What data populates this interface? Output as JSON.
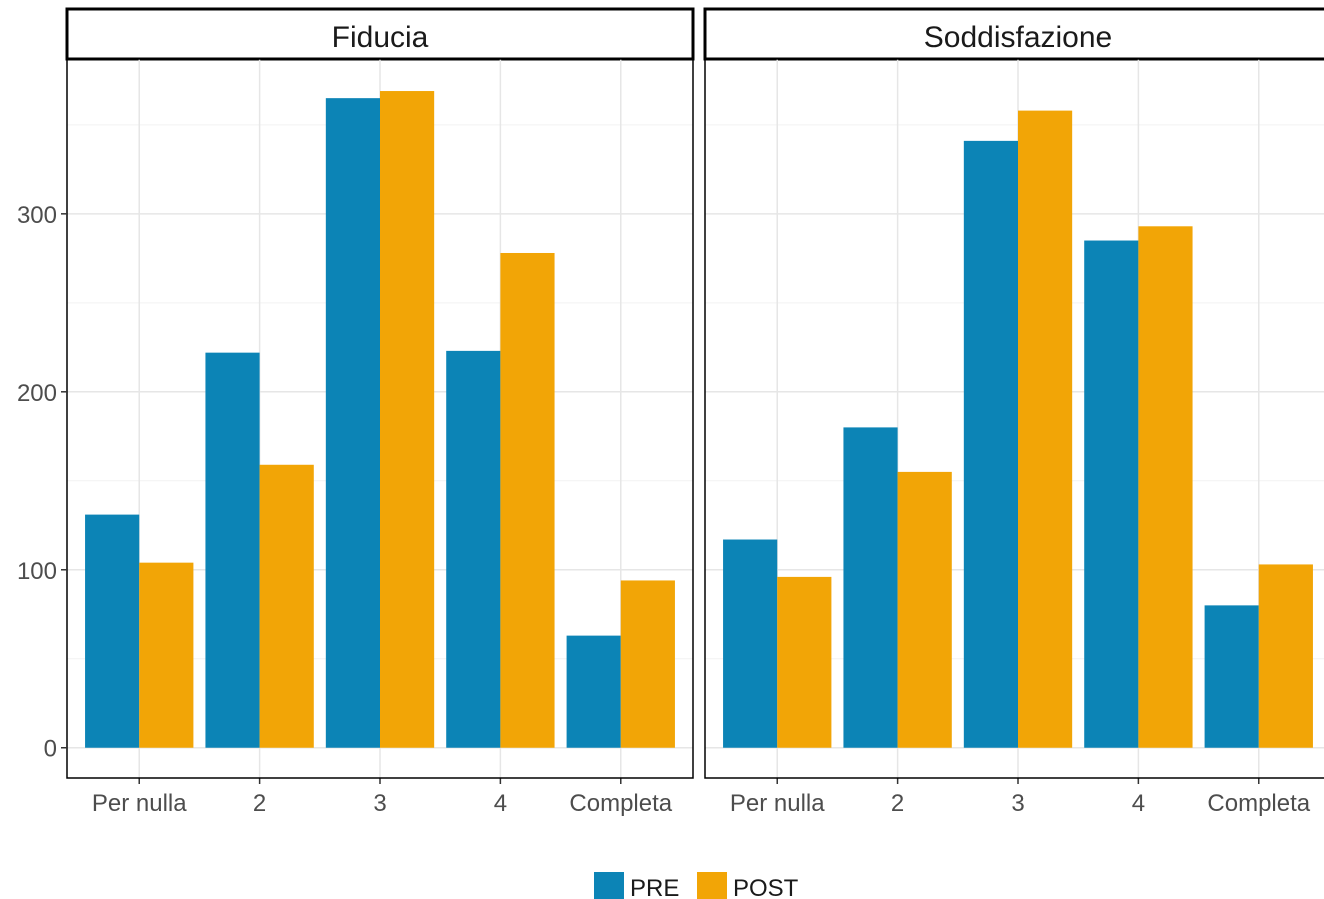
{
  "chart_data": {
    "type": "bar",
    "facets": [
      {
        "title": "Fiducia",
        "categories": [
          "Per nulla",
          "2",
          "3",
          "4",
          "Completa"
        ],
        "series": [
          {
            "name": "PRE",
            "values": [
              131,
              222,
              365,
              223,
              63
            ]
          },
          {
            "name": "POST",
            "values": [
              104,
              159,
              369,
              278,
              94
            ]
          }
        ]
      },
      {
        "title": "Soddisfazione",
        "categories": [
          "Per nulla",
          "2",
          "3",
          "4",
          "Completa"
        ],
        "series": [
          {
            "name": "PRE",
            "values": [
              117,
              180,
              341,
              285,
              80
            ]
          },
          {
            "name": "POST",
            "values": [
              96,
              155,
              358,
              293,
              103
            ]
          }
        ]
      }
    ],
    "xlabel": "",
    "ylabel": "",
    "ylim": [
      -17,
      387
    ],
    "yticks": [
      0,
      100,
      200,
      300
    ],
    "grid": true,
    "legend": {
      "position": "bottom",
      "entries": [
        "PRE",
        "POST"
      ]
    },
    "colors": {
      "PRE": "#0C84B6",
      "POST": "#F2A506"
    }
  }
}
